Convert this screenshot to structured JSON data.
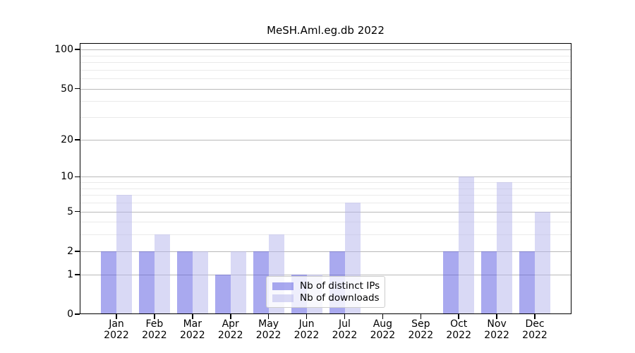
{
  "chart_data": {
    "type": "bar",
    "title": "MeSH.Aml.eg.db 2022",
    "categories": [
      "Jan",
      "Feb",
      "Mar",
      "Apr",
      "May",
      "Jun",
      "Jul",
      "Aug",
      "Sep",
      "Oct",
      "Nov",
      "Dec"
    ],
    "category_year_label": "2022",
    "series": [
      {
        "name": "Nb of distinct IPs",
        "color": "rgba(84,84,224,0.5)",
        "flat_color": "#a9a9ef",
        "values": [
          2,
          2,
          2,
          1,
          2,
          1,
          2,
          0,
          0,
          2,
          2,
          2
        ]
      },
      {
        "name": "Nb of downloads",
        "color": "rgba(179,179,235,0.5)",
        "flat_color": "#d9d9f5",
        "values": [
          7,
          3,
          2,
          2,
          3,
          1,
          6,
          0,
          0,
          10,
          9,
          5
        ]
      }
    ],
    "xlabel": "",
    "ylabel": "",
    "scale": "log1p",
    "y_ticks": [
      0,
      1,
      2,
      5,
      10,
      20,
      50,
      100
    ],
    "y_minor_ticks": [
      3,
      4,
      6,
      7,
      8,
      9,
      30,
      40,
      60,
      70,
      80,
      90
    ],
    "ylim": [
      0,
      112
    ],
    "grid": "on",
    "grid_major_color": "#b9b9b9",
    "grid_minor_color": "#eaeaea",
    "legend_position": "lower-center",
    "background_color": "#ffffff"
  }
}
